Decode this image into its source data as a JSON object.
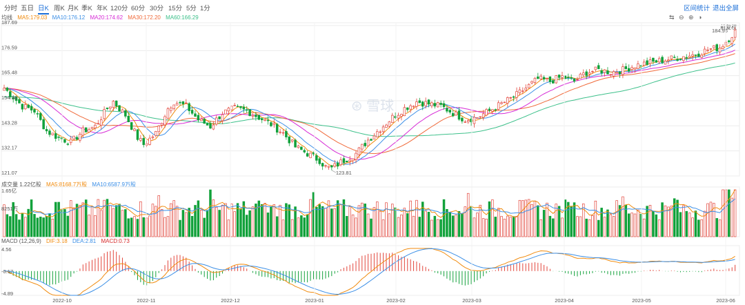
{
  "tabs": [
    {
      "label": "分时",
      "active": false
    },
    {
      "label": "五日",
      "active": false
    },
    {
      "label": "日K",
      "active": true
    },
    {
      "label": "周K",
      "active": false
    },
    {
      "label": "月K",
      "active": false
    },
    {
      "label": "季K",
      "active": false
    },
    {
      "label": "年K",
      "active": false
    },
    {
      "label": "120分",
      "active": false
    },
    {
      "label": "60分",
      "active": false
    },
    {
      "label": "30分",
      "active": false
    },
    {
      "label": "15分",
      "active": false
    },
    {
      "label": "5分",
      "active": false
    },
    {
      "label": "1分",
      "active": false
    }
  ],
  "toolbar": {
    "range_stats": "区间统计",
    "exit_fullscreen": "退出全屏",
    "adjust_label": "前复权"
  },
  "controls": [
    "⇆",
    "⊖",
    "⊕",
    "◑"
  ],
  "watermark": "雪球",
  "price_panel": {
    "indicator": "均线",
    "legend": [
      {
        "text": "MA5:179.03",
        "color": "#f08a0c"
      },
      {
        "text": "MA10:176.12",
        "color": "#3a8ee6"
      },
      {
        "text": "MA20:174.62",
        "color": "#d62ad6"
      },
      {
        "text": "MA30:172.20",
        "color": "#f06a3a"
      },
      {
        "text": "MA60:166.29",
        "color": "#3cc08a"
      }
    ],
    "ticks": [
      "187.69",
      "176.59",
      "165.48",
      "154.38",
      "143.28",
      "132.17",
      "121.07"
    ],
    "high_label": "184.95",
    "low_label": "123.81"
  },
  "volume_panel": {
    "title": "成交量 1.22亿股",
    "legend": [
      {
        "text": "MA5:8168.7万股",
        "color": "#f08a0c"
      },
      {
        "text": "MA10:6587.9万股",
        "color": "#3a8ee6"
      }
    ],
    "ticks": [
      "1.65亿",
      "8251万"
    ]
  },
  "macd_panel": {
    "title": "MACD (12,26,9)",
    "legend": [
      {
        "text": "DIF:3.18",
        "color": "#f08a0c"
      },
      {
        "text": "DEA:2.81",
        "color": "#3a8ee6"
      },
      {
        "text": "MACD:0.73",
        "color": "#d62a2a"
      }
    ],
    "ticks": [
      "4.56",
      "-0.17",
      "-4.89"
    ]
  },
  "colors": {
    "up": "#e2443a",
    "down": "#11a13a",
    "grid": "#ececec"
  },
  "chart_data": {
    "type": "candlestick",
    "x_labels": [
      "2022-10",
      "2022-11",
      "2022-12",
      "2023-01",
      "2023-02",
      "2023-03",
      "2023-04",
      "2023-05",
      "2023-06"
    ],
    "price_range": [
      121.07,
      187.69
    ],
    "volume_max": "1.65亿",
    "macd_range": [
      -4.89,
      4.56
    ],
    "close_anchors": [
      [
        0,
        160
      ],
      [
        6,
        152
      ],
      [
        10,
        150
      ],
      [
        14,
        141
      ],
      [
        18,
        138
      ],
      [
        22,
        136
      ],
      [
        26,
        141
      ],
      [
        30,
        143
      ],
      [
        34,
        151
      ],
      [
        36,
        154
      ],
      [
        40,
        148
      ],
      [
        44,
        138
      ],
      [
        46,
        135
      ],
      [
        50,
        140
      ],
      [
        54,
        151
      ],
      [
        56,
        154
      ],
      [
        60,
        152
      ],
      [
        64,
        146
      ],
      [
        68,
        143
      ],
      [
        72,
        149
      ],
      [
        76,
        151
      ],
      [
        80,
        150
      ],
      [
        84,
        147
      ],
      [
        88,
        144
      ],
      [
        92,
        140
      ],
      [
        96,
        134
      ],
      [
        100,
        131
      ],
      [
        104,
        128
      ],
      [
        106,
        125
      ],
      [
        108,
        124.5
      ],
      [
        112,
        128
      ],
      [
        116,
        131
      ],
      [
        120,
        137
      ],
      [
        124,
        142
      ],
      [
        128,
        147
      ],
      [
        132,
        151
      ],
      [
        136,
        154
      ],
      [
        140,
        153
      ],
      [
        144,
        152
      ],
      [
        148,
        149
      ],
      [
        152,
        146
      ],
      [
        156,
        147
      ],
      [
        160,
        150
      ],
      [
        164,
        153
      ],
      [
        168,
        156
      ],
      [
        172,
        160
      ],
      [
        176,
        164
      ],
      [
        180,
        163
      ],
      [
        184,
        165
      ],
      [
        188,
        163
      ],
      [
        192,
        167
      ],
      [
        196,
        168
      ],
      [
        200,
        167
      ],
      [
        204,
        168
      ],
      [
        208,
        170
      ],
      [
        212,
        171
      ],
      [
        216,
        172
      ],
      [
        220,
        173
      ],
      [
        224,
        174
      ],
      [
        228,
        175
      ],
      [
        232,
        177
      ],
      [
        236,
        178
      ],
      [
        239,
        182
      ],
      [
        241,
        185
      ]
    ]
  }
}
